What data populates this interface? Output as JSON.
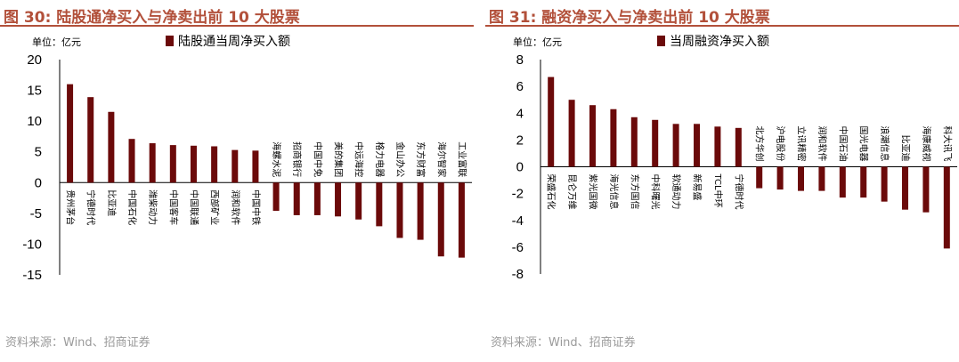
{
  "source_note": "资料来源：Wind、招商证券",
  "chart_data": [
    {
      "type": "bar",
      "figure_label": "图 30:",
      "title": "陆股通净买入与净卖出前 10 大股票",
      "unit": "单位：亿元",
      "series": [
        {
          "name": "陆股通当周净买入额",
          "values": [
            16.0,
            13.9,
            11.5,
            7.1,
            6.4,
            6.1,
            6.0,
            5.9,
            5.3,
            5.2,
            -4.6,
            -5.3,
            -5.3,
            -5.5,
            -6.0,
            -7.1,
            -9.0,
            -9.3,
            -12.0,
            -12.2
          ]
        }
      ],
      "categories": [
        "贵州茅台",
        "宁德时代",
        "比亚迪",
        "中国石化",
        "潍柴动力",
        "中国客车",
        "中国联通",
        "西部矿业",
        "润和软件",
        "中国中铁",
        "海螺水泥",
        "招商银行",
        "中国中免",
        "美的集团",
        "中远海控",
        "格力电器",
        "金山办公",
        "东方财富",
        "海尔智家",
        "工业富联"
      ],
      "yticks": [
        "20",
        "15",
        "10",
        "5",
        "0",
        "-5",
        "-10",
        "-15"
      ],
      "ylim": [
        -15,
        20
      ],
      "color": "#6b0a0a",
      "legend": "top"
    },
    {
      "type": "bar",
      "figure_label": "图 31:",
      "title": "融资净买入与净卖出前 10 大股票",
      "unit": "单位：亿元",
      "series": [
        {
          "name": "当周融资净买入额",
          "values": [
            6.7,
            5.0,
            4.6,
            4.3,
            3.7,
            3.5,
            3.2,
            3.2,
            3.0,
            2.9,
            -1.6,
            -1.7,
            -1.8,
            -1.8,
            -2.3,
            -2.3,
            -2.6,
            -3.2,
            -3.4,
            -6.1
          ]
        }
      ],
      "categories": [
        "荣盛石化",
        "昆仑万维",
        "紫光国微",
        "海光信息",
        "东方国信",
        "中科曙光",
        "软通动力",
        "新易盛",
        "TCL中环",
        "宁德时代",
        "北方华创",
        "沪电股份",
        "立讯精密",
        "润和软件",
        "中国石油",
        "国光电器",
        "浪潮信息",
        "比亚迪",
        "海康威视",
        "科大讯飞"
      ],
      "yticks": [
        "8",
        "6",
        "4",
        "2",
        "0",
        "-2",
        "-4",
        "-6",
        "-8"
      ],
      "ylim": [
        -8,
        8
      ],
      "color": "#6b0a0a",
      "legend": "top"
    }
  ]
}
